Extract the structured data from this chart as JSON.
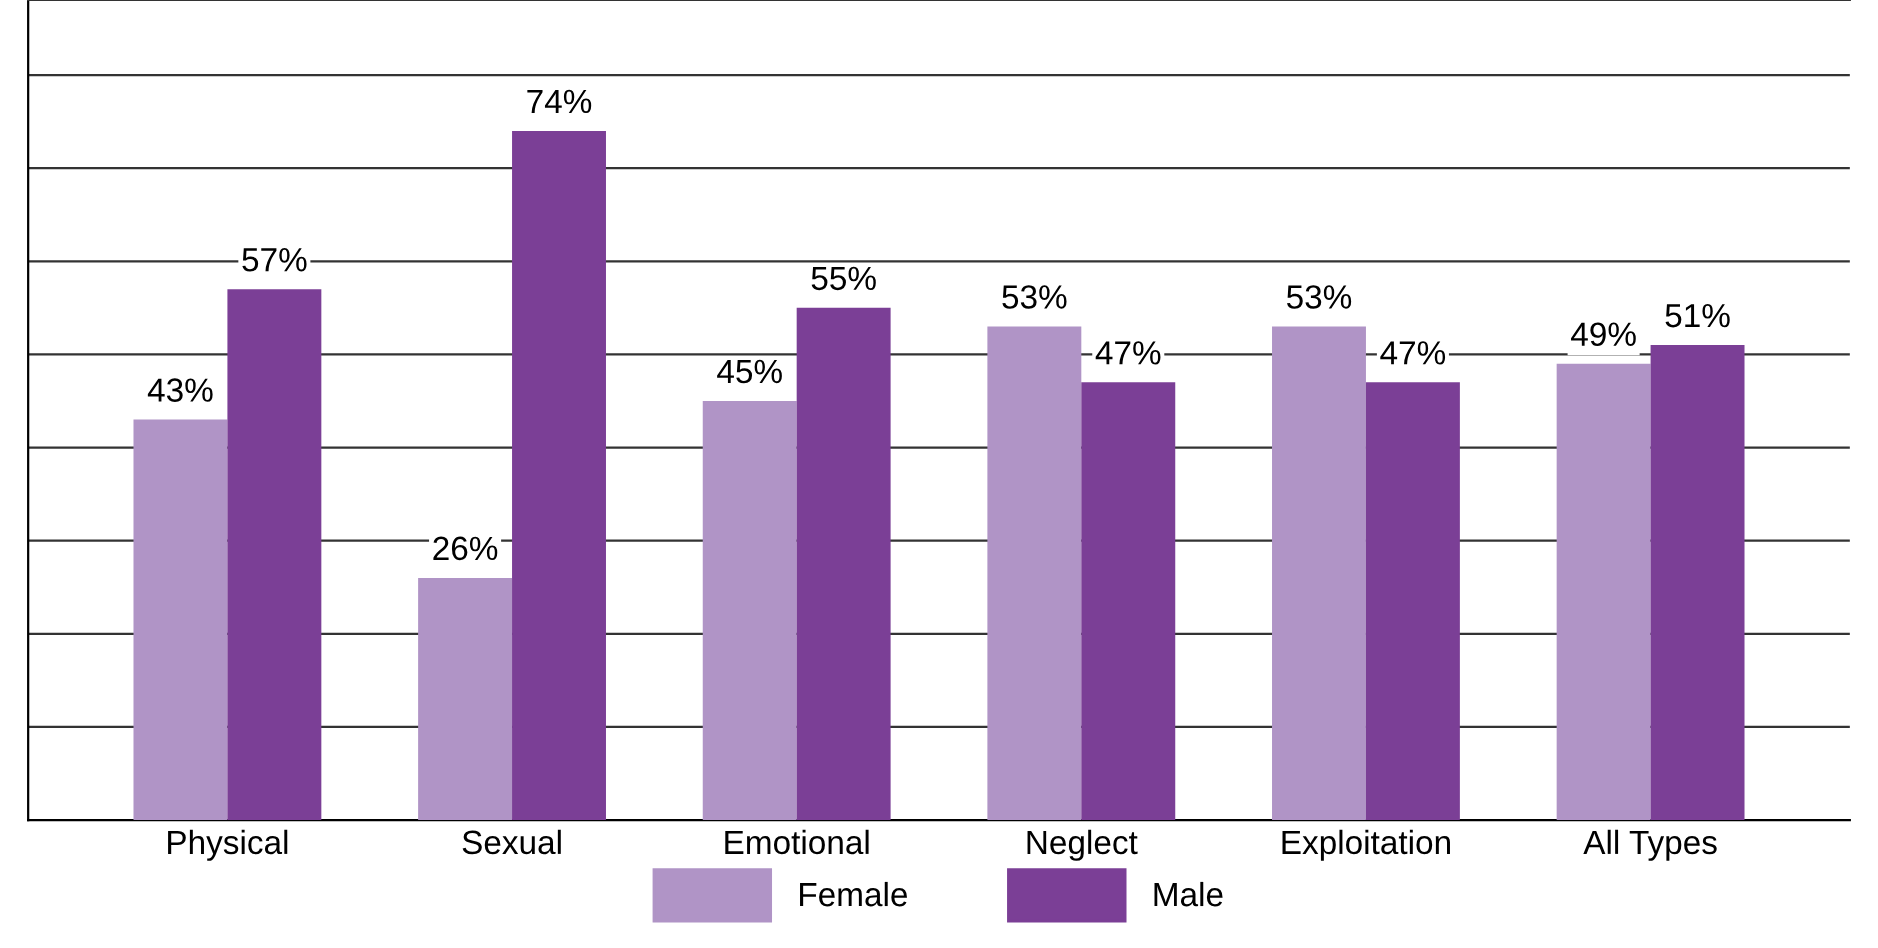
{
  "chart_data": {
    "type": "bar",
    "categories": [
      "Physical",
      "Sexual",
      "Emotional",
      "Neglect",
      "Exploitation",
      "All Types"
    ],
    "series": [
      {
        "name": "Female",
        "color": "#b094c6",
        "values": [
          43,
          26,
          45,
          53,
          53,
          49
        ],
        "value_labels": [
          "43%",
          "26%",
          "45%",
          "53%",
          "53%",
          "49%"
        ]
      },
      {
        "name": "Male",
        "color": "#7b3f96",
        "values": [
          57,
          74,
          55,
          47,
          47,
          51
        ],
        "value_labels": [
          "57%",
          "74%",
          "55%",
          "47%",
          "47%",
          "51%"
        ]
      }
    ],
    "grid": "y",
    "legend": "bottom",
    "tick_labels": "x"
  }
}
